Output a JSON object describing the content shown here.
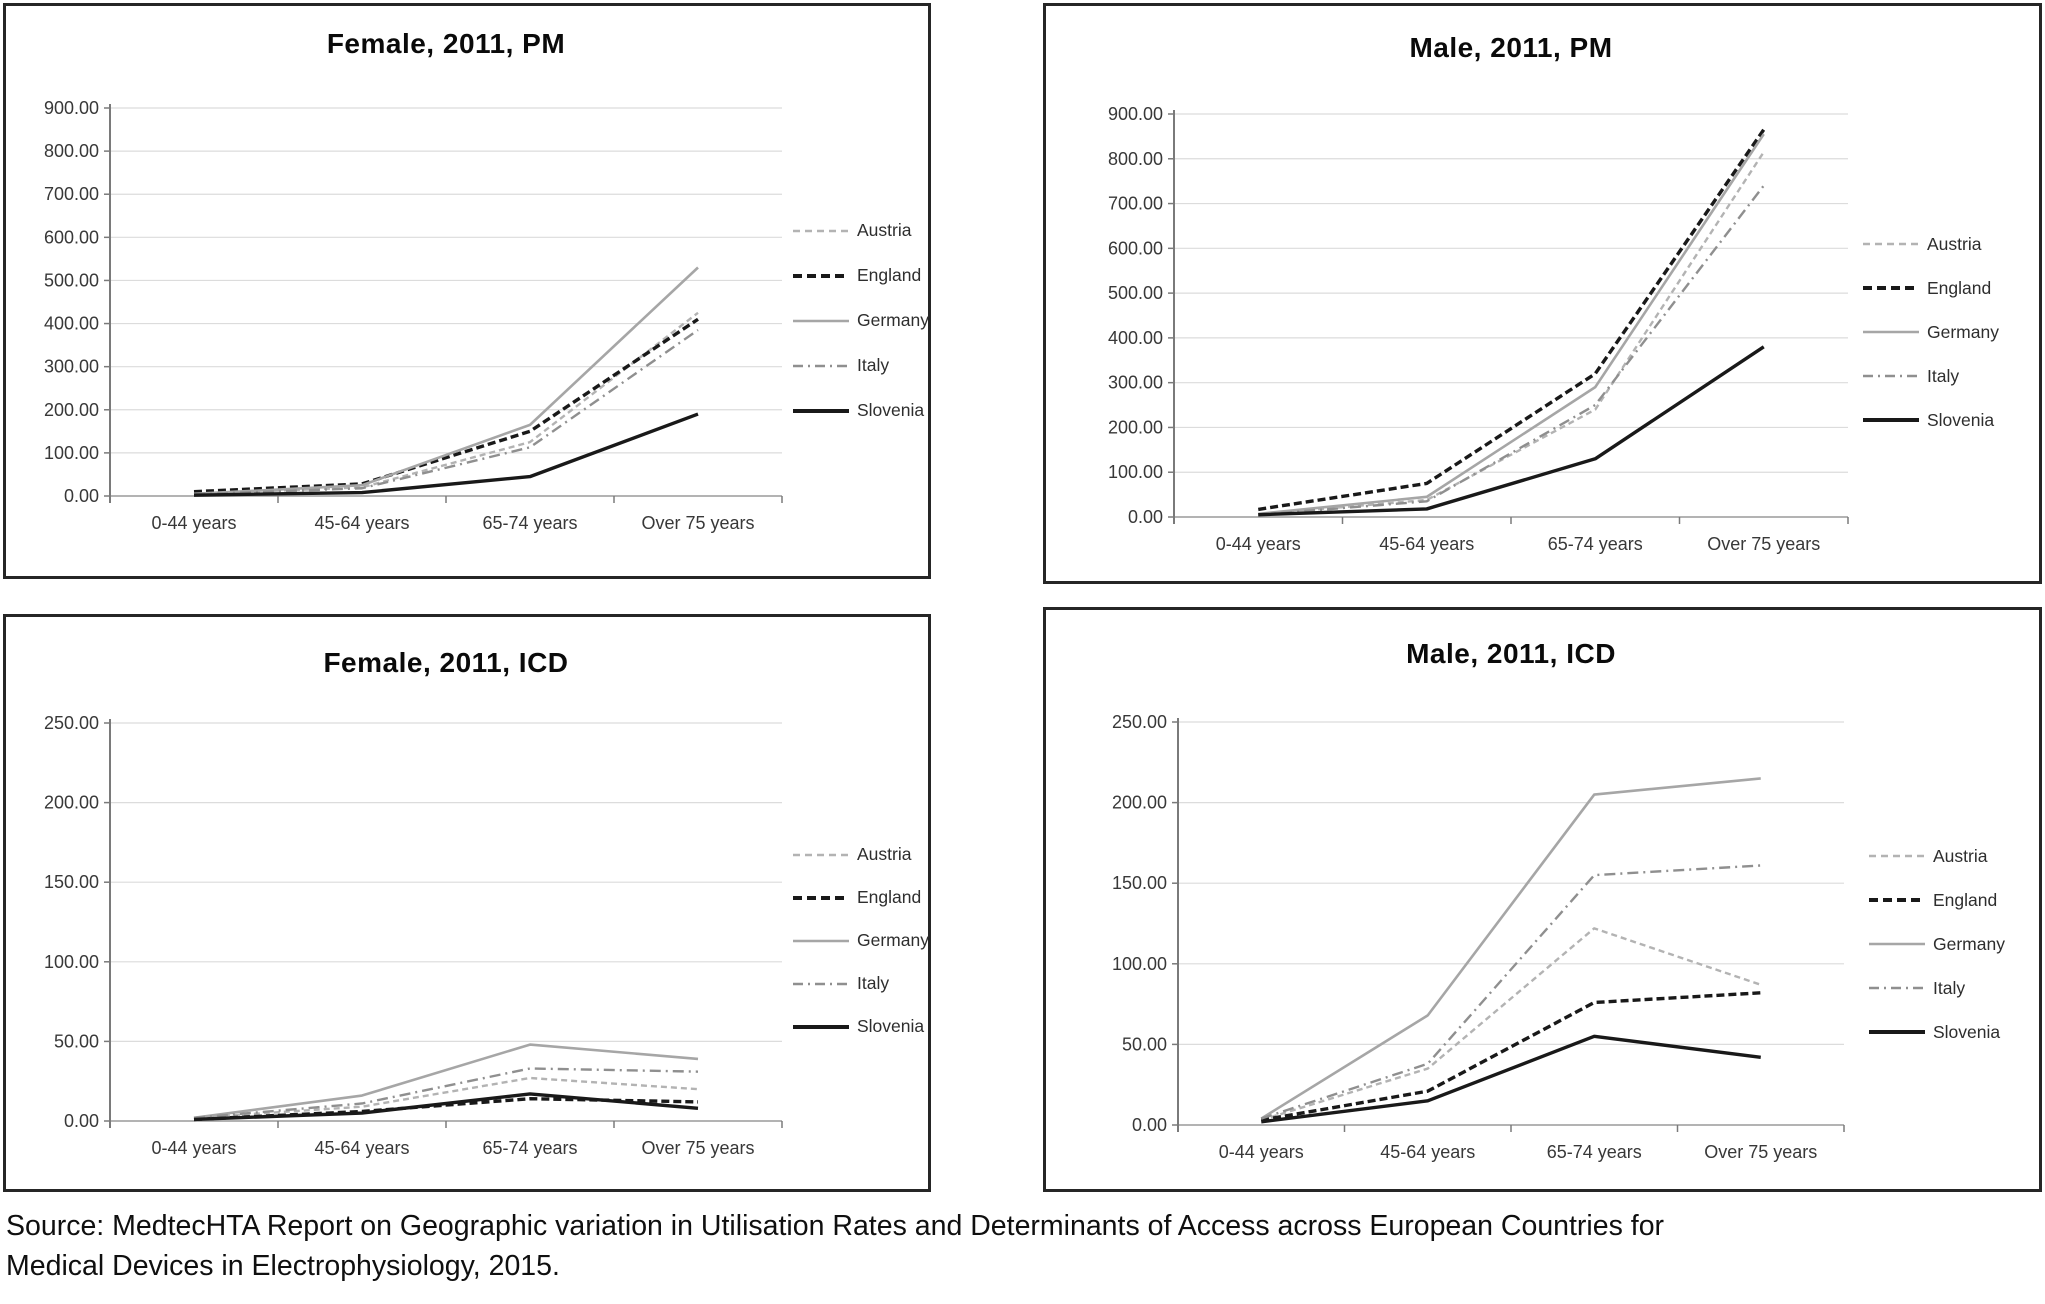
{
  "figure": {
    "source_note": "Source: MedtecHTA Report on Geographic variation in Utilisation Rates and Determinants of Access across European Countries for Medical Devices in Electrophysiology, 2015."
  },
  "colors": {
    "austria": "#b3b3b3",
    "england": "#191919",
    "germany": "#a6a6a6",
    "italy": "#8f8f8f",
    "slovenia": "#191919",
    "gridline": "#dcdcdc",
    "axis": "#7a7a7a",
    "baseline": "#a8a8a8",
    "panel_border": "#262626"
  },
  "chart_data": [
    {
      "type": "line",
      "title": "Female, 2011, PM",
      "categories": [
        "0-44 years",
        "45-64 years",
        "65-74 years",
        "Over 75 years"
      ],
      "ylim": [
        0,
        900
      ],
      "ytick_step": 100,
      "ytick_labels": [
        "0.00",
        "100.00",
        "200.00",
        "300.00",
        "400.00",
        "500.00",
        "600.00",
        "700.00",
        "800.00",
        "900.00"
      ],
      "grid": true,
      "legend_position": "right",
      "series": [
        {
          "name": "Austria",
          "style": "austria",
          "values": [
            5,
            20,
            125,
            425
          ]
        },
        {
          "name": "England",
          "style": "england",
          "values": [
            10,
            28,
            150,
            410
          ]
        },
        {
          "name": "Germany",
          "style": "germany",
          "values": [
            5,
            25,
            165,
            530
          ]
        },
        {
          "name": "Italy",
          "style": "italy",
          "values": [
            4,
            18,
            113,
            385
          ]
        },
        {
          "name": "Slovenia",
          "style": "slovenia",
          "values": [
            2,
            8,
            45,
            190
          ]
        }
      ]
    },
    {
      "type": "line",
      "title": "Male, 2011, PM",
      "categories": [
        "0-44 years",
        "45-64 years",
        "65-74 years",
        "Over 75 years"
      ],
      "ylim": [
        0,
        900
      ],
      "ytick_step": 100,
      "ytick_labels": [
        "0.00",
        "100.00",
        "200.00",
        "300.00",
        "400.00",
        "500.00",
        "600.00",
        "700.00",
        "800.00",
        "900.00"
      ],
      "grid": true,
      "legend_position": "right",
      "series": [
        {
          "name": "Austria",
          "style": "austria",
          "values": [
            6,
            38,
            240,
            815
          ]
        },
        {
          "name": "England",
          "style": "england",
          "values": [
            17,
            75,
            320,
            865
          ]
        },
        {
          "name": "Germany",
          "style": "germany",
          "values": [
            7,
            45,
            290,
            855
          ]
        },
        {
          "name": "Italy",
          "style": "italy",
          "values": [
            5,
            35,
            250,
            740
          ]
        },
        {
          "name": "Slovenia",
          "style": "slovenia",
          "values": [
            5,
            18,
            130,
            380
          ]
        }
      ]
    },
    {
      "type": "line",
      "title": "Female, 2011, ICD",
      "categories": [
        "0-44 years",
        "45-64 years",
        "65-74 years",
        "Over 75 years"
      ],
      "ylim": [
        0,
        250
      ],
      "ytick_step": 50,
      "ytick_labels": [
        "0.00",
        "50.00",
        "100.00",
        "150.00",
        "200.00",
        "250.00"
      ],
      "grid": true,
      "legend_position": "right",
      "series": [
        {
          "name": "Austria",
          "style": "austria",
          "values": [
            2,
            9,
            27,
            20
          ]
        },
        {
          "name": "England",
          "style": "england",
          "values": [
            1,
            6,
            14,
            12
          ]
        },
        {
          "name": "Germany",
          "style": "germany",
          "values": [
            2,
            16,
            48,
            39
          ]
        },
        {
          "name": "Italy",
          "style": "italy",
          "values": [
            2,
            11,
            33,
            31
          ]
        },
        {
          "name": "Slovenia",
          "style": "slovenia",
          "values": [
            1,
            5,
            17,
            8
          ]
        }
      ]
    },
    {
      "type": "line",
      "title": "Male, 2011, ICD",
      "categories": [
        "0-44 years",
        "45-64 years",
        "65-74 years",
        "Over 75 years"
      ],
      "ylim": [
        0,
        250
      ],
      "ytick_step": 50,
      "ytick_labels": [
        "0.00",
        "50.00",
        "100.00",
        "150.00",
        "200.00",
        "250.00"
      ],
      "grid": true,
      "legend_position": "right",
      "series": [
        {
          "name": "Austria",
          "style": "austria",
          "values": [
            3,
            35,
            122,
            87
          ]
        },
        {
          "name": "England",
          "style": "england",
          "values": [
            3,
            21,
            76,
            82
          ]
        },
        {
          "name": "Germany",
          "style": "germany",
          "values": [
            4,
            68,
            205,
            215
          ]
        },
        {
          "name": "Italy",
          "style": "italy",
          "values": [
            4,
            38,
            155,
            161
          ]
        },
        {
          "name": "Slovenia",
          "style": "slovenia",
          "values": [
            2,
            15,
            55,
            42
          ]
        }
      ]
    }
  ]
}
